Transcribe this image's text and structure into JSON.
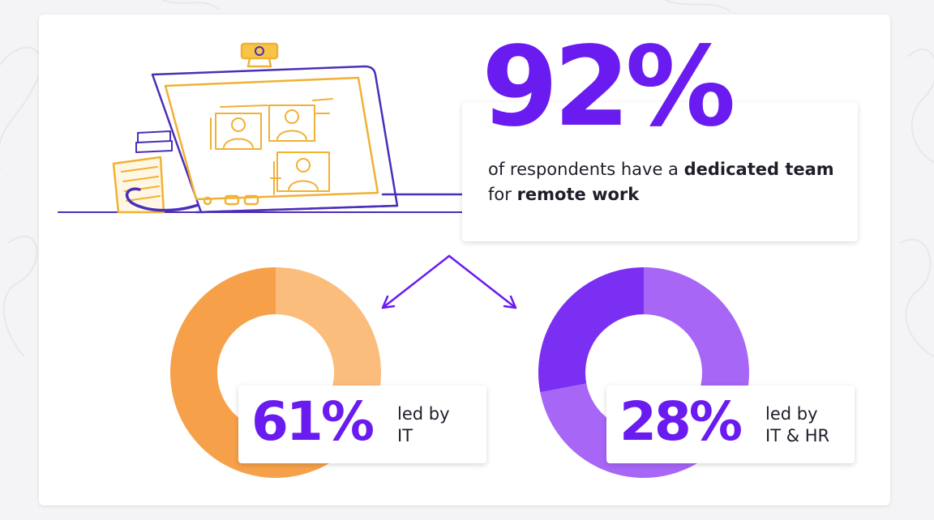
{
  "headline": {
    "percent": "92%",
    "text_prefix": "of respondents have a ",
    "text_bold1": "dedicated team",
    "text_mid": " for remote work",
    "text_bold2": "remote work"
  },
  "chart_data": [
    {
      "type": "pie",
      "values": [
        61,
        39
      ],
      "percent_label": "61%",
      "caption": "led by IT",
      "caption_line1": "led by",
      "caption_line2": "IT",
      "colors": [
        "#f7a04a",
        "#fbbd7c"
      ]
    },
    {
      "type": "pie",
      "values": [
        28,
        72
      ],
      "percent_label": "28%",
      "caption": "led by IT & HR",
      "caption_line1": "led by",
      "caption_line2": "IT & HR",
      "colors": [
        "#7b2ff2",
        "#a766f6"
      ]
    }
  ],
  "colors": {
    "accent": "#6a1bf0",
    "illustration_orange": "#f0b134",
    "illustration_purple": "#4b2fb8"
  },
  "icons": [
    "laptop-illustration",
    "webcam-icon",
    "book-stack-icon",
    "video-call-person-icon",
    "split-arrow-icon"
  ]
}
